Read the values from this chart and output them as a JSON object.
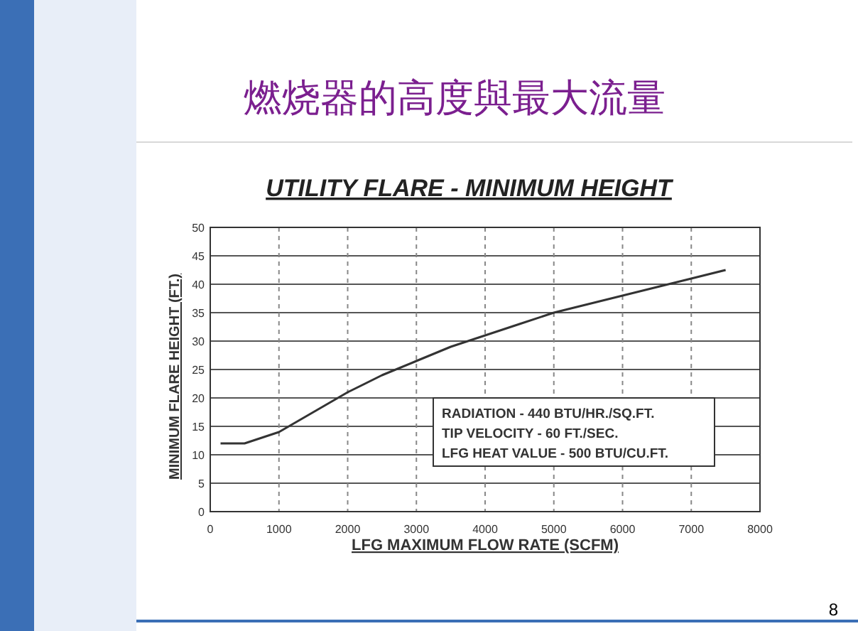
{
  "chart_data": {
    "type": "line",
    "title": "燃烧器的高度與最大流量",
    "subtitle": "UTILITY FLARE - MINIMUM HEIGHT",
    "xlabel": "LFG MAXIMUM FLOW RATE (SCFM)",
    "ylabel": "MINIMUM FLARE HEIGHT (FT.)",
    "x": [
      150,
      500,
      1000,
      1500,
      2000,
      2500,
      3000,
      3500,
      4000,
      4500,
      5000,
      5500,
      6000,
      6500,
      7000,
      7500
    ],
    "series": [
      {
        "color": "#333333",
        "values": [
          12,
          12,
          14,
          17.5,
          21,
          24,
          26.5,
          29,
          31,
          33,
          35,
          36.5,
          38,
          39.5,
          41,
          42.5
        ]
      }
    ],
    "xlim": [
      0,
      8000
    ],
    "xticks": [
      0,
      1000,
      2000,
      3000,
      4000,
      5000,
      6000,
      7000,
      8000
    ],
    "ylim": [
      0,
      50
    ],
    "yticks": [
      0,
      5,
      10,
      15,
      20,
      25,
      30,
      35,
      40,
      45,
      50
    ],
    "grid": true,
    "marker": "none",
    "line_style": "solid",
    "annotations": [
      "RADIATION - 440 BTU/HR./SQ.FT.",
      "TIP VELOCITY -  60 FT./SEC.",
      "LFG HEAT VALUE - 500 BTU/CU.FT.",
      "8"
    ]
  }
}
